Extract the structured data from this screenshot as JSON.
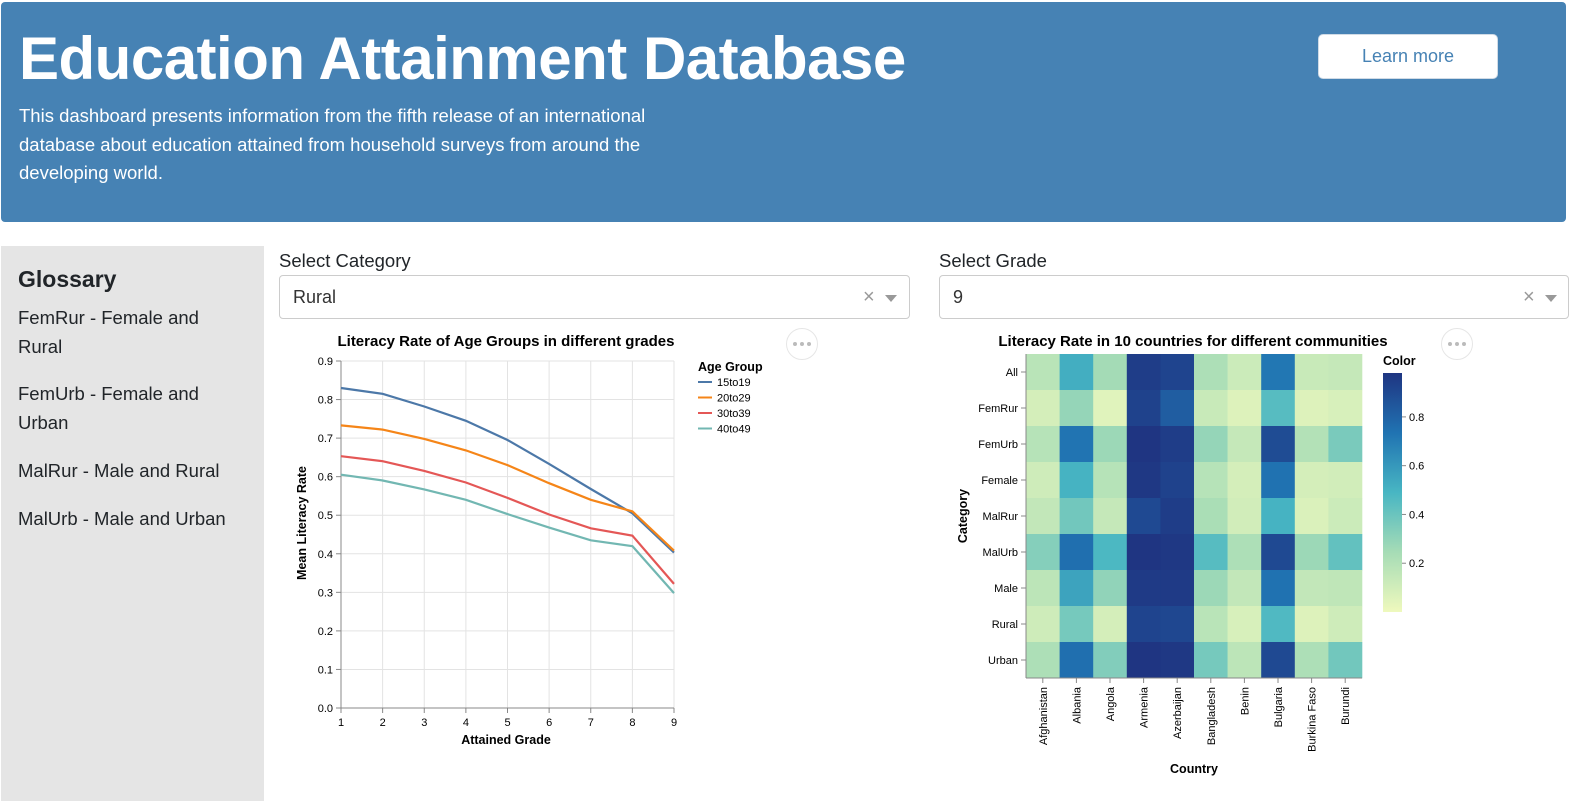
{
  "header": {
    "title": "Education Attainment Database",
    "description": "This dashboard presents information from the fifth release of an international database about education attained from household surveys from around the developing world.",
    "learn_more_label": "Learn more",
    "background": "#4682b4"
  },
  "sidebar": {
    "title": "Glossary",
    "items": [
      {
        "label": "FemRur - Female and Rural"
      },
      {
        "label": "FemUrb - Female and Urban"
      },
      {
        "label": "MalRur - Male and Rural"
      },
      {
        "label": "MalUrb - Male and Urban"
      }
    ]
  },
  "controls": {
    "category": {
      "label": "Select Category",
      "value": "Rural",
      "clear_icon": "close-icon",
      "caret_icon": "chevron-down-icon"
    },
    "grade": {
      "label": "Select Grade",
      "value": "9",
      "clear_icon": "close-icon",
      "caret_icon": "chevron-down-icon"
    }
  },
  "chart_data": [
    {
      "type": "line",
      "title": "Literacy Rate of Age Groups in different grades",
      "xlabel": "Attained Grade",
      "ylabel": "Mean Literacy Rate",
      "x": [
        1,
        2,
        3,
        4,
        5,
        6,
        7,
        8,
        9
      ],
      "ylim": [
        0,
        0.9
      ],
      "yticks": [
        "0.0",
        "0.1",
        "0.2",
        "0.3",
        "0.4",
        "0.5",
        "0.6",
        "0.7",
        "0.8",
        "0.9"
      ],
      "grid": true,
      "legend_title": "Age Group",
      "legend_position": "top-right",
      "series": [
        {
          "name": "15to19",
          "color": "#4c78a8",
          "values": [
            0.83,
            0.815,
            0.782,
            0.745,
            0.695,
            0.633,
            0.568,
            0.505,
            0.403
          ]
        },
        {
          "name": "20to29",
          "color": "#f58518",
          "values": [
            0.733,
            0.722,
            0.698,
            0.668,
            0.63,
            0.583,
            0.54,
            0.51,
            0.408
          ]
        },
        {
          "name": "30to39",
          "color": "#e45756",
          "values": [
            0.653,
            0.64,
            0.615,
            0.585,
            0.545,
            0.502,
            0.466,
            0.447,
            0.322
          ]
        },
        {
          "name": "40to49",
          "color": "#72b7b2",
          "values": [
            0.605,
            0.59,
            0.567,
            0.54,
            0.503,
            0.468,
            0.435,
            0.42,
            0.298
          ]
        }
      ]
    },
    {
      "type": "heatmap",
      "title": "Literacy Rate in 10 countries for different communities",
      "xlabel": "Country",
      "ylabel": "Category",
      "x": [
        "Afghanistan",
        "Albania",
        "Angola",
        "Armenia",
        "Azerbaijan",
        "Bangladesh",
        "Benin",
        "Bulgaria",
        "Burkina Faso",
        "Burundi"
      ],
      "y": [
        "All",
        "FemRur",
        "FemUrb",
        "Female",
        "MalRur",
        "MalUrb",
        "Male",
        "Rural",
        "Urban"
      ],
      "legend_title": "Color",
      "legend_ticks": [
        "0.8",
        "0.6",
        "0.4",
        "0.2"
      ],
      "color_range": [
        0.0,
        0.98
      ],
      "values": [
        [
          0.18,
          0.52,
          0.25,
          0.95,
          0.92,
          0.22,
          0.12,
          0.72,
          0.13,
          0.14
        ],
        [
          0.09,
          0.29,
          0.05,
          0.93,
          0.82,
          0.13,
          0.06,
          0.45,
          0.06,
          0.08
        ],
        [
          0.19,
          0.73,
          0.27,
          0.98,
          0.95,
          0.29,
          0.14,
          0.89,
          0.2,
          0.36
        ],
        [
          0.11,
          0.5,
          0.19,
          0.97,
          0.93,
          0.19,
          0.09,
          0.74,
          0.09,
          0.1
        ],
        [
          0.15,
          0.38,
          0.14,
          0.9,
          0.95,
          0.23,
          0.1,
          0.5,
          0.07,
          0.12
        ],
        [
          0.33,
          0.75,
          0.48,
          0.98,
          0.97,
          0.45,
          0.22,
          0.9,
          0.27,
          0.42
        ],
        [
          0.17,
          0.56,
          0.3,
          0.96,
          0.96,
          0.27,
          0.15,
          0.74,
          0.15,
          0.16
        ],
        [
          0.11,
          0.37,
          0.09,
          0.92,
          0.91,
          0.18,
          0.08,
          0.47,
          0.06,
          0.11
        ],
        [
          0.22,
          0.75,
          0.34,
          0.99,
          0.97,
          0.37,
          0.17,
          0.9,
          0.22,
          0.38
        ]
      ]
    }
  ]
}
